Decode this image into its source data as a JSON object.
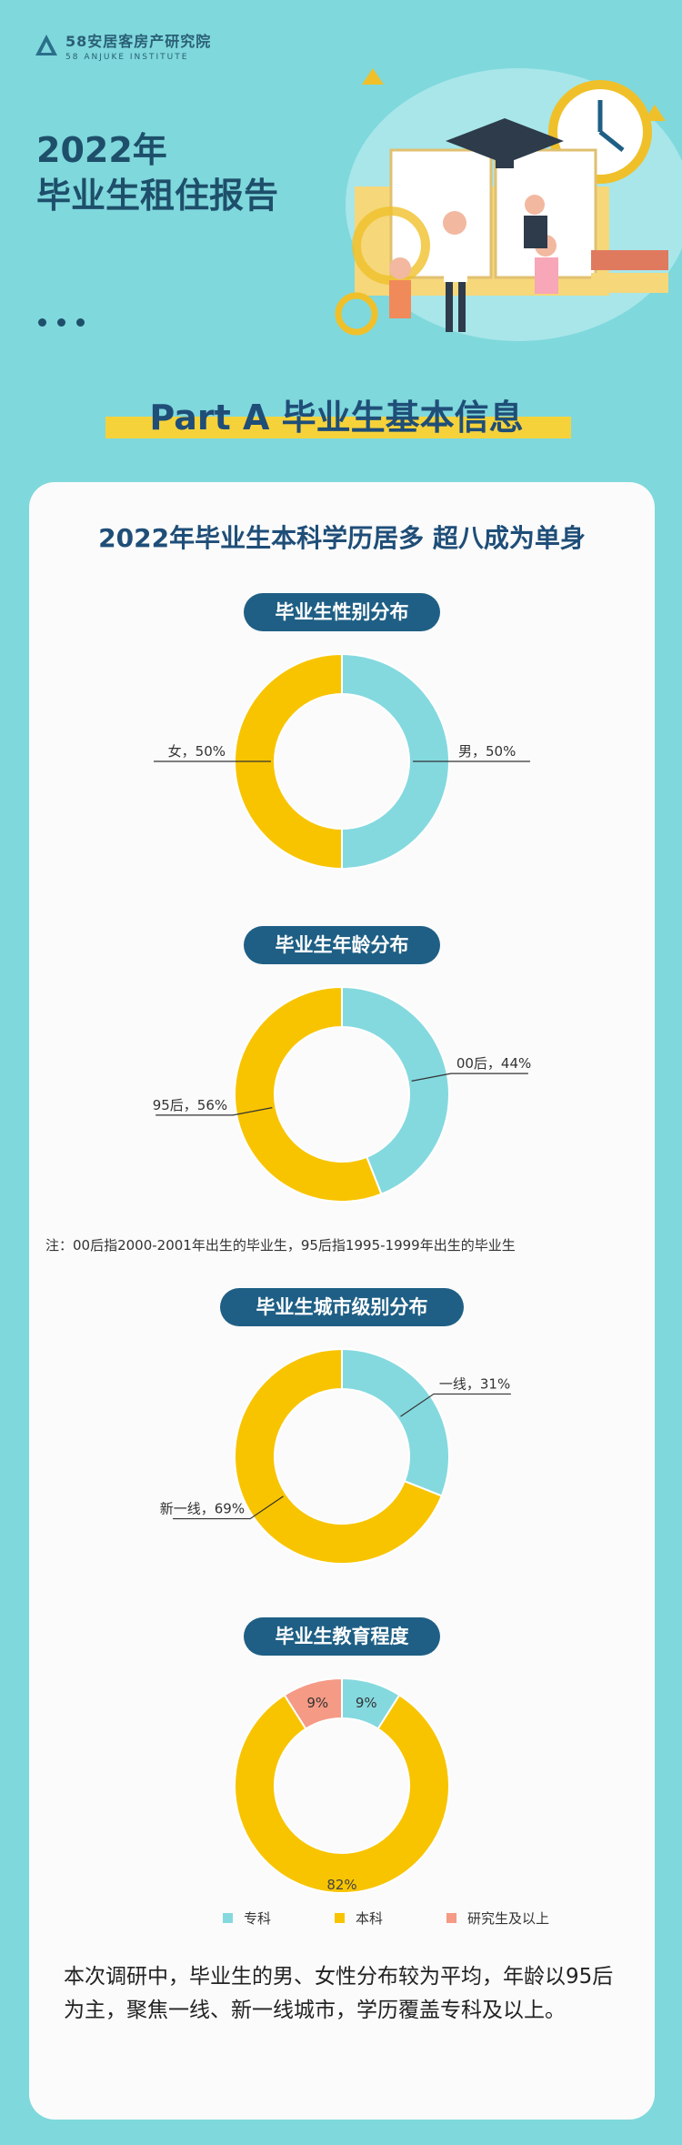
{
  "brand": {
    "name": "58安居客房产研究院",
    "name_en": "58 ANJUKE INSTITUTE",
    "logo_text": "58"
  },
  "hero": {
    "line1": "2022年",
    "line2": "毕业生租住报告"
  },
  "part_banner": "Part A 毕业生基本信息",
  "card_title": "2022年毕业生本科学历居多 超八成为单身",
  "colors": {
    "teal": "#84d9df",
    "yellow": "#f8c400",
    "salmon": "#f59a85",
    "navy": "#1f5f85"
  },
  "chart_data": [
    {
      "type": "pie",
      "title": "毕业生性别分布",
      "categories": [
        "男",
        "女"
      ],
      "values": [
        50,
        50
      ],
      "labels": [
        "男，50%",
        "女，50%"
      ],
      "colors": [
        "#84d9df",
        "#f8c400"
      ]
    },
    {
      "type": "pie",
      "title": "毕业生年龄分布",
      "categories": [
        "00后",
        "95后"
      ],
      "values": [
        44,
        56
      ],
      "labels": [
        "00后，44%",
        "95后，56%"
      ],
      "colors": [
        "#84d9df",
        "#f8c400"
      ]
    },
    {
      "type": "pie",
      "title": "毕业生城市级别分布",
      "categories": [
        "一线",
        "新一线"
      ],
      "values": [
        31,
        69
      ],
      "labels": [
        "一线，31%",
        "新一线，69%"
      ],
      "colors": [
        "#84d9df",
        "#f8c400"
      ]
    },
    {
      "type": "pie",
      "title": "毕业生教育程度",
      "categories": [
        "专科",
        "本科",
        "研究生及以上"
      ],
      "values": [
        9,
        82,
        9
      ],
      "labels": [
        "9%",
        "82%",
        "9%"
      ],
      "colors": [
        "#84d9df",
        "#f8c400",
        "#f59a85"
      ],
      "legend": [
        "专科",
        "本科",
        "研究生及以上"
      ]
    }
  ],
  "note": "注：00后指2000-2001年出生的毕业生，95后指1995-1999年出生的毕业生",
  "summary": "本次调研中，毕业生的男、女性分布较为平均，年龄以95后为主，聚焦一线、新一线城市，学历覆盖专科及以上。"
}
